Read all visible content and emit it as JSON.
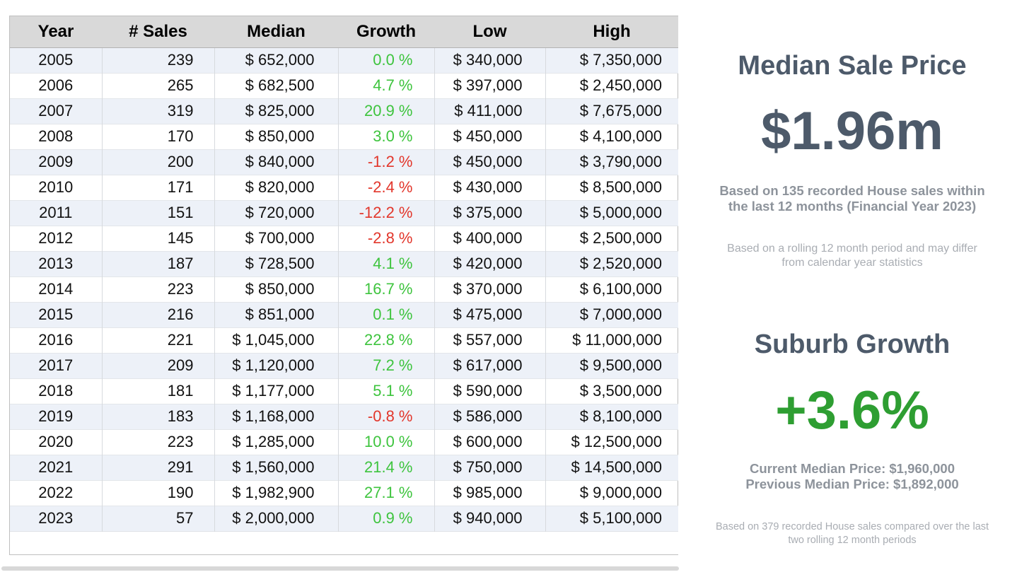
{
  "colors": {
    "positive": "#3ec43e",
    "negative": "#e2362b",
    "heading": "#4d5a6a",
    "growth-big": "#2e9e32",
    "subtext-bold": "#8d939b",
    "subtext-light": "#a9adb3",
    "header-bg": "#d9d9d9",
    "stripe-bg": "#edf1f8"
  },
  "table": {
    "columns": [
      "Year",
      "# Sales",
      "Median",
      "Growth",
      "Low",
      "High"
    ],
    "rows": [
      [
        "2005",
        "239",
        "$ 652,000",
        "0.0 %",
        "$ 340,000",
        "$ 7,350,000"
      ],
      [
        "2006",
        "265",
        "$ 682,500",
        "4.7 %",
        "$ 397,000",
        "$ 2,450,000"
      ],
      [
        "2007",
        "319",
        "$ 825,000",
        "20.9 %",
        "$ 411,000",
        "$ 7,675,000"
      ],
      [
        "2008",
        "170",
        "$ 850,000",
        "3.0 %",
        "$ 450,000",
        "$ 4,100,000"
      ],
      [
        "2009",
        "200",
        "$ 840,000",
        "-1.2 %",
        "$ 450,000",
        "$ 3,790,000"
      ],
      [
        "2010",
        "171",
        "$ 820,000",
        "-2.4 %",
        "$ 430,000",
        "$ 8,500,000"
      ],
      [
        "2011",
        "151",
        "$ 720,000",
        "-12.2 %",
        "$ 375,000",
        "$ 5,000,000"
      ],
      [
        "2012",
        "145",
        "$ 700,000",
        "-2.8 %",
        "$ 400,000",
        "$ 2,500,000"
      ],
      [
        "2013",
        "187",
        "$ 728,500",
        "4.1 %",
        "$ 420,000",
        "$ 2,520,000"
      ],
      [
        "2014",
        "223",
        "$ 850,000",
        "16.7 %",
        "$ 370,000",
        "$ 6,100,000"
      ],
      [
        "2015",
        "216",
        "$ 851,000",
        "0.1 %",
        "$ 475,000",
        "$ 7,000,000"
      ],
      [
        "2016",
        "221",
        "$ 1,045,000",
        "22.8 %",
        "$ 557,000",
        "$ 11,000,000"
      ],
      [
        "2017",
        "209",
        "$ 1,120,000",
        "7.2 %",
        "$ 617,000",
        "$ 9,500,000"
      ],
      [
        "2018",
        "181",
        "$ 1,177,000",
        "5.1 %",
        "$ 590,000",
        "$ 3,500,000"
      ],
      [
        "2019",
        "183",
        "$ 1,168,000",
        "-0.8 %",
        "$ 586,000",
        "$ 8,100,000"
      ],
      [
        "2020",
        "223",
        "$ 1,285,000",
        "10.0 %",
        "$ 600,000",
        "$ 12,500,000"
      ],
      [
        "2021",
        "291",
        "$ 1,560,000",
        "21.4 %",
        "$ 750,000",
        "$ 14,500,000"
      ],
      [
        "2022",
        "190",
        "$ 1,982,900",
        "27.1 %",
        "$ 985,000",
        "$ 9,000,000"
      ],
      [
        "2023",
        "57",
        "$ 2,000,000",
        "0.9 %",
        "$ 940,000",
        "$ 5,100,000"
      ]
    ]
  },
  "panel": {
    "median_title": "Median Sale Price",
    "median_value": "$1.96m",
    "median_basis": "Based on 135 recorded House sales within the last 12 months (Financial Year 2023)",
    "median_note": "Based on a rolling 12 month period and may differ from calendar year statistics",
    "growth_title": "Suburb Growth",
    "growth_value": "+3.6%",
    "growth_current": "Current Median Price: $1,960,000",
    "growth_previous": "Previous Median Price: $1,892,000",
    "growth_note": "Based on 379 recorded House sales compared over the last two rolling 12 month periods"
  },
  "chart_data": {
    "type": "table",
    "title": "Yearly house sales statistics 2005-2023",
    "columns": [
      "Year",
      "# Sales",
      "Median",
      "Growth %",
      "Low",
      "High"
    ],
    "rows": [
      [
        2005,
        239,
        652000,
        0.0,
        340000,
        7350000
      ],
      [
        2006,
        265,
        682500,
        4.7,
        397000,
        2450000
      ],
      [
        2007,
        319,
        825000,
        20.9,
        411000,
        7675000
      ],
      [
        2008,
        170,
        850000,
        3.0,
        450000,
        4100000
      ],
      [
        2009,
        200,
        840000,
        -1.2,
        450000,
        3790000
      ],
      [
        2010,
        171,
        820000,
        -2.4,
        430000,
        8500000
      ],
      [
        2011,
        151,
        720000,
        -12.2,
        375000,
        5000000
      ],
      [
        2012,
        145,
        700000,
        -2.8,
        400000,
        2500000
      ],
      [
        2013,
        187,
        728500,
        4.1,
        420000,
        2520000
      ],
      [
        2014,
        223,
        850000,
        16.7,
        370000,
        6100000
      ],
      [
        2015,
        216,
        851000,
        0.1,
        475000,
        7000000
      ],
      [
        2016,
        221,
        1045000,
        22.8,
        557000,
        11000000
      ],
      [
        2017,
        209,
        1120000,
        7.2,
        617000,
        9500000
      ],
      [
        2018,
        181,
        1177000,
        5.1,
        590000,
        3500000
      ],
      [
        2019,
        183,
        1168000,
        -0.8,
        586000,
        8100000
      ],
      [
        2020,
        223,
        1285000,
        10.0,
        600000,
        12500000
      ],
      [
        2021,
        291,
        1560000,
        21.4,
        750000,
        14500000
      ],
      [
        2022,
        190,
        1982900,
        27.1,
        985000,
        9000000
      ],
      [
        2023,
        57,
        2000000,
        0.9,
        940000,
        5100000
      ]
    ]
  }
}
